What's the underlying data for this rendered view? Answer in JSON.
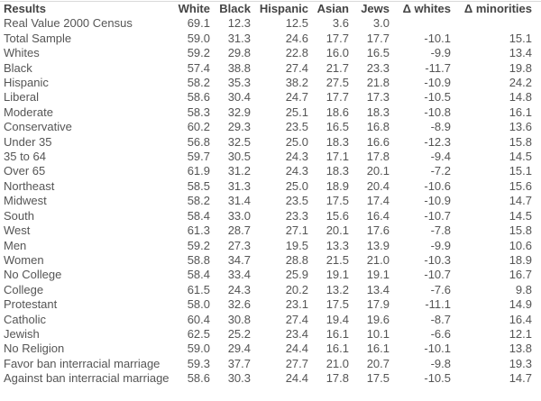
{
  "colors": {
    "header_text": "#444444",
    "body_text": "#555555",
    "top_border": "#d9d9d9",
    "background": "#ffffff"
  },
  "chart_data": {
    "type": "table",
    "title": "Results",
    "columns": [
      "Results",
      "White",
      "Black",
      "Hispanic",
      "Asian",
      "Jews",
      "Δ whites",
      "Δ minorities"
    ],
    "rows": [
      [
        "Real Value 2000 Census",
        "69.1",
        "12.3",
        "12.5",
        "3.6",
        "3.0",
        "",
        ""
      ],
      [
        "Total Sample",
        "59.0",
        "31.3",
        "24.6",
        "17.7",
        "17.7",
        "-10.1",
        "15.1"
      ],
      [
        "Whites",
        "59.2",
        "29.8",
        "22.8",
        "16.0",
        "16.5",
        "-9.9",
        "13.4"
      ],
      [
        "Black",
        "57.4",
        "38.8",
        "27.4",
        "21.7",
        "23.3",
        "-11.7",
        "19.8"
      ],
      [
        "Hispanic",
        "58.2",
        "35.3",
        "38.2",
        "27.5",
        "21.8",
        "-10.9",
        "24.2"
      ],
      [
        "Liberal",
        "58.6",
        "30.4",
        "24.7",
        "17.7",
        "17.3",
        "-10.5",
        "14.8"
      ],
      [
        "Moderate",
        "58.3",
        "32.9",
        "25.1",
        "18.6",
        "18.3",
        "-10.8",
        "16.1"
      ],
      [
        "Conservative",
        "60.2",
        "29.3",
        "23.5",
        "16.5",
        "16.8",
        "-8.9",
        "13.6"
      ],
      [
        "Under 35",
        "56.8",
        "32.5",
        "25.0",
        "18.3",
        "16.6",
        "-12.3",
        "15.8"
      ],
      [
        "35 to 64",
        "59.7",
        "30.5",
        "24.3",
        "17.1",
        "17.8",
        "-9.4",
        "14.5"
      ],
      [
        "Over 65",
        "61.9",
        "31.2",
        "24.3",
        "18.3",
        "20.1",
        "-7.2",
        "15.1"
      ],
      [
        "Northeast",
        "58.5",
        "31.3",
        "25.0",
        "18.9",
        "20.4",
        "-10.6",
        "15.6"
      ],
      [
        "Midwest",
        "58.2",
        "31.4",
        "23.5",
        "17.5",
        "17.4",
        "-10.9",
        "14.7"
      ],
      [
        "South",
        "58.4",
        "33.0",
        "23.3",
        "15.6",
        "16.4",
        "-10.7",
        "14.5"
      ],
      [
        "West",
        "61.3",
        "28.7",
        "27.1",
        "20.1",
        "17.6",
        "-7.8",
        "15.8"
      ],
      [
        "Men",
        "59.2",
        "27.3",
        "19.5",
        "13.3",
        "13.9",
        "-9.9",
        "10.6"
      ],
      [
        "Women",
        "58.8",
        "34.7",
        "28.8",
        "21.5",
        "21.0",
        "-10.3",
        "18.9"
      ],
      [
        "No College",
        "58.4",
        "33.4",
        "25.9",
        "19.1",
        "19.1",
        "-10.7",
        "16.7"
      ],
      [
        "College",
        "61.5",
        "24.3",
        "20.2",
        "13.2",
        "13.4",
        "-7.6",
        "9.8"
      ],
      [
        "Protestant",
        "58.0",
        "32.6",
        "23.1",
        "17.5",
        "17.9",
        "-11.1",
        "14.9"
      ],
      [
        "Catholic",
        "60.4",
        "30.8",
        "27.4",
        "19.4",
        "19.6",
        "-8.7",
        "16.4"
      ],
      [
        "Jewish",
        "62.5",
        "25.2",
        "23.4",
        "16.1",
        "10.1",
        "-6.6",
        "12.1"
      ],
      [
        "No Religion",
        "59.0",
        "29.4",
        "24.4",
        "16.1",
        "16.1",
        "-10.1",
        "13.8"
      ],
      [
        "Favor ban interracial marriage",
        "59.3",
        "37.7",
        "27.7",
        "21.0",
        "20.7",
        "-9.8",
        "19.3"
      ],
      [
        "Against ban interracial marriage",
        "58.6",
        "30.3",
        "24.4",
        "17.8",
        "17.5",
        "-10.5",
        "14.7"
      ]
    ]
  }
}
